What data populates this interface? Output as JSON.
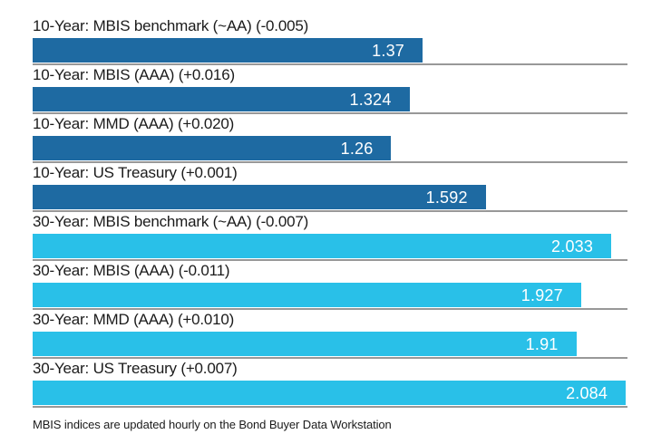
{
  "chart_data": {
    "type": "bar",
    "orientation": "horizontal",
    "title": "",
    "xlabel": "",
    "ylabel": "",
    "xlim": [
      0,
      2.09
    ],
    "grid": false,
    "legend": "none",
    "colors": {
      "ten_year": "#1e6aa2",
      "thirty_year": "#29c0e8"
    },
    "bars": [
      {
        "label": "10-Year: MBIS benchmark (~AA) (-0.005)",
        "value": 1.37,
        "value_label": "1.37",
        "group": "ten_year"
      },
      {
        "label": "10-Year: MBIS (AAA) (+0.016)",
        "value": 1.324,
        "value_label": "1.324",
        "group": "ten_year"
      },
      {
        "label": "10-Year: MMD (AAA) (+0.020)",
        "value": 1.26,
        "value_label": "1.26",
        "group": "ten_year"
      },
      {
        "label": "10-Year: US Treasury (+0.001)",
        "value": 1.592,
        "value_label": "1.592",
        "group": "ten_year"
      },
      {
        "label": "30-Year: MBIS benchmark (~AA) (-0.007)",
        "value": 2.033,
        "value_label": "2.033",
        "group": "thirty_year"
      },
      {
        "label": "30-Year: MBIS (AAA) (-0.011)",
        "value": 1.927,
        "value_label": "1.927",
        "group": "thirty_year"
      },
      {
        "label": "30-Year: MMD (AAA) (+0.010)",
        "value": 1.91,
        "value_label": "1.91",
        "group": "thirty_year"
      },
      {
        "label": "30-Year: US Treasury (+0.007)",
        "value": 2.084,
        "value_label": "2.084",
        "group": "thirty_year"
      }
    ],
    "footnote": "MBIS indices are updated hourly on the Bond Buyer Data Workstation"
  }
}
